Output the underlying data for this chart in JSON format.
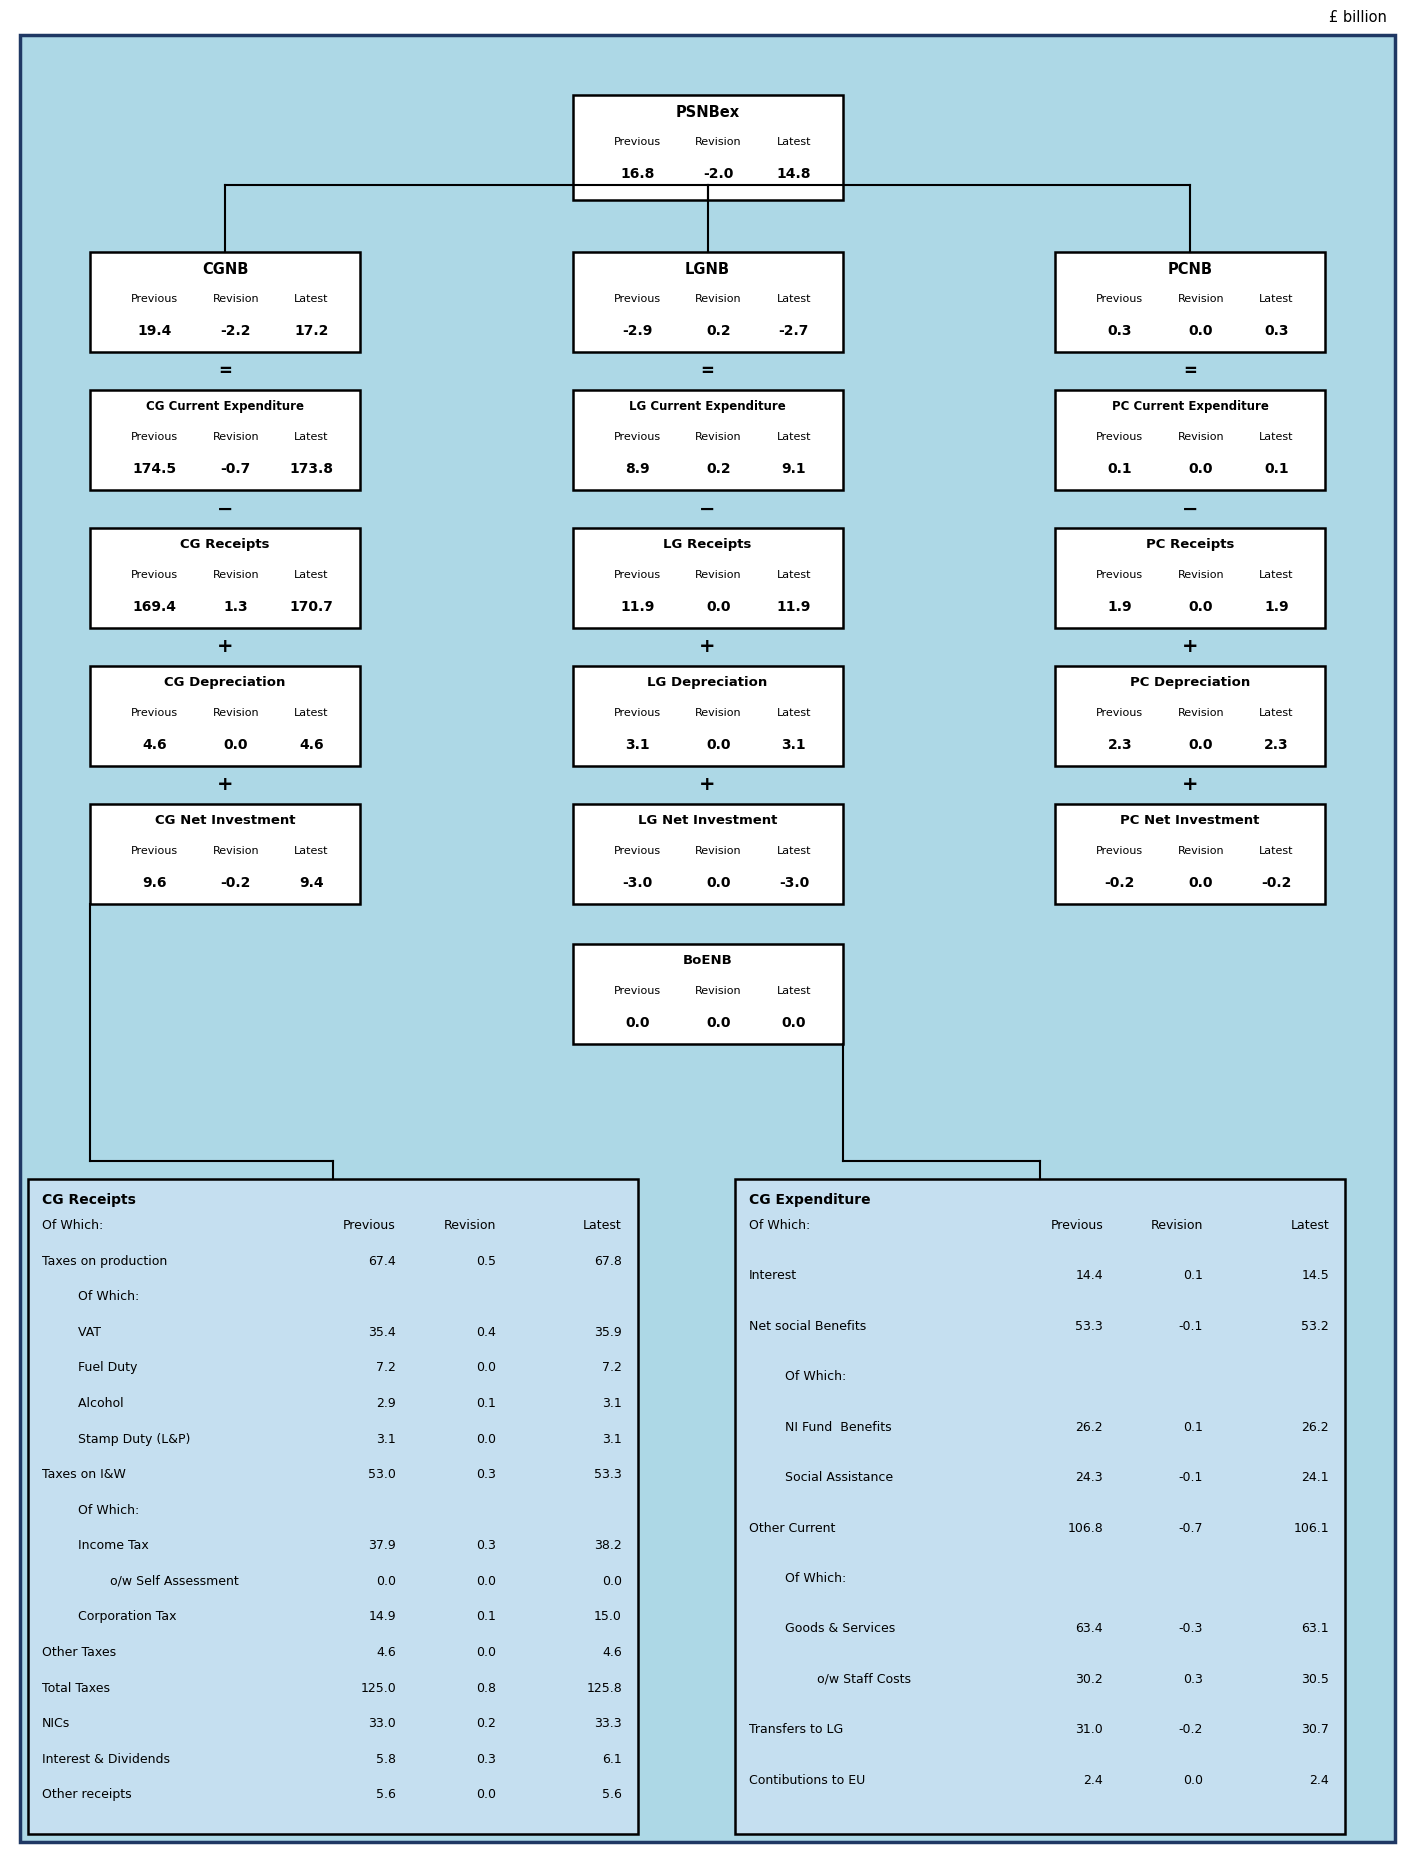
{
  "bg_color": "#ADD8E6",
  "box_inner_bg": "#C8E4F0",
  "box_edge_main": "#1A3A6B",
  "pound_label": "£ billion",
  "psnbex": {
    "title": "PSNBex",
    "prev": "16.8",
    "rev": "-2.0",
    "lat": "14.8"
  },
  "cgnb": {
    "title": "CGNB",
    "prev": "19.4",
    "rev": "-2.2",
    "lat": "17.2"
  },
  "lgnb": {
    "title": "LGNB",
    "prev": "-2.9",
    "rev": "0.2",
    "lat": "-2.7"
  },
  "pcnb": {
    "title": "PCNB",
    "prev": "0.3",
    "rev": "0.0",
    "lat": "0.3"
  },
  "cg_curr_exp": {
    "title": "CG Current Expenditure",
    "prev": "174.5",
    "rev": "-0.7",
    "lat": "173.8"
  },
  "cg_receipts_box": {
    "title": "CG Receipts",
    "prev": "169.4",
    "rev": "1.3",
    "lat": "170.7"
  },
  "cg_depreciation": {
    "title": "CG Depreciation",
    "prev": "4.6",
    "rev": "0.0",
    "lat": "4.6"
  },
  "cg_net_inv": {
    "title": "CG Net Investment",
    "prev": "9.6",
    "rev": "-0.2",
    "lat": "9.4"
  },
  "lg_curr_exp": {
    "title": "LG Current Expenditure",
    "prev": "8.9",
    "rev": "0.2",
    "lat": "9.1"
  },
  "lg_receipts_box": {
    "title": "LG Receipts",
    "prev": "11.9",
    "rev": "0.0",
    "lat": "11.9"
  },
  "lg_depreciation": {
    "title": "LG Depreciation",
    "prev": "3.1",
    "rev": "0.0",
    "lat": "3.1"
  },
  "lg_net_inv": {
    "title": "LG Net Investment",
    "prev": "-3.0",
    "rev": "0.0",
    "lat": "-3.0"
  },
  "pc_curr_exp": {
    "title": "PC Current Expenditure",
    "prev": "0.1",
    "rev": "0.0",
    "lat": "0.1"
  },
  "pc_receipts_box": {
    "title": "PC Receipts",
    "prev": "1.9",
    "rev": "0.0",
    "lat": "1.9"
  },
  "pc_depreciation": {
    "title": "PC Depreciation",
    "prev": "2.3",
    "rev": "0.0",
    "lat": "2.3"
  },
  "pc_net_inv": {
    "title": "PC Net Investment",
    "prev": "-0.2",
    "rev": "0.0",
    "lat": "-0.2"
  },
  "boenb": {
    "title": "BoENB",
    "prev": "0.0",
    "rev": "0.0",
    "lat": "0.0"
  },
  "cg_receipts_detail": {
    "title": "CG Receipts",
    "rows": [
      {
        "label": "Of Which:",
        "indent": 0,
        "bold": false,
        "prev": "Previous",
        "rev": "Revision",
        "lat": "Latest",
        "is_header": true
      },
      {
        "label": "Taxes on production",
        "indent": 0,
        "bold": false,
        "prev": "67.4",
        "rev": "0.5",
        "lat": "67.8"
      },
      {
        "label": "  Of Which:",
        "indent": 1,
        "bold": false,
        "prev": "",
        "rev": "",
        "lat": ""
      },
      {
        "label": "  VAT",
        "indent": 1,
        "bold": false,
        "prev": "35.4",
        "rev": "0.4",
        "lat": "35.9"
      },
      {
        "label": "  Fuel Duty",
        "indent": 1,
        "bold": false,
        "prev": "7.2",
        "rev": "0.0",
        "lat": "7.2"
      },
      {
        "label": "  Alcohol",
        "indent": 1,
        "bold": false,
        "prev": "2.9",
        "rev": "0.1",
        "lat": "3.1"
      },
      {
        "label": "  Stamp Duty (L&P)",
        "indent": 1,
        "bold": false,
        "prev": "3.1",
        "rev": "0.0",
        "lat": "3.1"
      },
      {
        "label": "Taxes on I&W",
        "indent": 0,
        "bold": false,
        "prev": "53.0",
        "rev": "0.3",
        "lat": "53.3"
      },
      {
        "label": "  Of Which:",
        "indent": 1,
        "bold": false,
        "prev": "",
        "rev": "",
        "lat": ""
      },
      {
        "label": "  Income Tax",
        "indent": 1,
        "bold": false,
        "prev": "37.9",
        "rev": "0.3",
        "lat": "38.2"
      },
      {
        "label": "   o/w Self Assessment",
        "indent": 2,
        "bold": false,
        "prev": "0.0",
        "rev": "0.0",
        "lat": "0.0"
      },
      {
        "label": "  Corporation Tax",
        "indent": 1,
        "bold": false,
        "prev": "14.9",
        "rev": "0.1",
        "lat": "15.0"
      },
      {
        "label": "Other Taxes",
        "indent": 0,
        "bold": false,
        "prev": "4.6",
        "rev": "0.0",
        "lat": "4.6"
      },
      {
        "label": "Total Taxes",
        "indent": 0,
        "bold": false,
        "prev": "125.0",
        "rev": "0.8",
        "lat": "125.8"
      },
      {
        "label": "NICs",
        "indent": 0,
        "bold": false,
        "prev": "33.0",
        "rev": "0.2",
        "lat": "33.3"
      },
      {
        "label": "Interest & Dividends",
        "indent": 0,
        "bold": false,
        "prev": "5.8",
        "rev": "0.3",
        "lat": "6.1"
      },
      {
        "label": "Other receipts",
        "indent": 0,
        "bold": false,
        "prev": "5.6",
        "rev": "0.0",
        "lat": "5.6"
      }
    ]
  },
  "cg_expenditure_detail": {
    "title": "CG Expenditure",
    "rows": [
      {
        "label": "Of Which:",
        "indent": 0,
        "bold": false,
        "prev": "Previous",
        "rev": "Revision",
        "lat": "Latest",
        "is_header": true
      },
      {
        "label": "Interest",
        "indent": 0,
        "bold": false,
        "prev": "14.4",
        "rev": "0.1",
        "lat": "14.5"
      },
      {
        "label": "Net social Benefits",
        "indent": 0,
        "bold": false,
        "prev": "53.3",
        "rev": "-0.1",
        "lat": "53.2"
      },
      {
        "label": "  Of Which:",
        "indent": 1,
        "bold": false,
        "prev": "",
        "rev": "",
        "lat": ""
      },
      {
        "label": "  NI Fund  Benefits",
        "indent": 1,
        "bold": false,
        "prev": "26.2",
        "rev": "0.1",
        "lat": "26.2"
      },
      {
        "label": "  Social Assistance",
        "indent": 1,
        "bold": false,
        "prev": "24.3",
        "rev": "-0.1",
        "lat": "24.1"
      },
      {
        "label": "Other Current",
        "indent": 0,
        "bold": false,
        "prev": "106.8",
        "rev": "-0.7",
        "lat": "106.1"
      },
      {
        "label": "  Of Which:",
        "indent": 1,
        "bold": false,
        "prev": "",
        "rev": "",
        "lat": ""
      },
      {
        "label": "  Goods & Services",
        "indent": 1,
        "bold": false,
        "prev": "63.4",
        "rev": "-0.3",
        "lat": "63.1"
      },
      {
        "label": "   o/w Staff Costs",
        "indent": 2,
        "bold": false,
        "prev": "30.2",
        "rev": "0.3",
        "lat": "30.5"
      },
      {
        "label": "Transfers to LG",
        "indent": 0,
        "bold": false,
        "prev": "31.0",
        "rev": "-0.2",
        "lat": "30.7"
      },
      {
        "label": "Contibutions to EU",
        "indent": 0,
        "bold": false,
        "prev": "2.4",
        "rev": "0.0",
        "lat": "2.4"
      }
    ]
  }
}
